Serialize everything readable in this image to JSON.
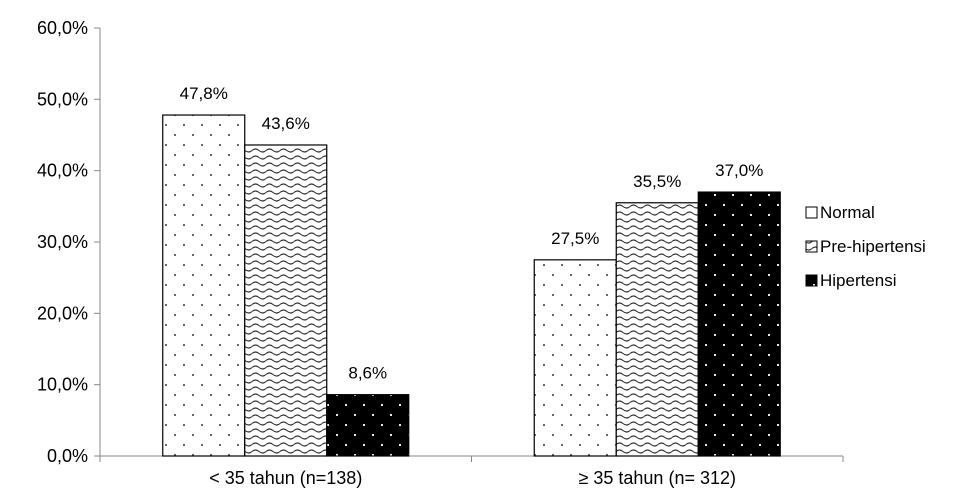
{
  "chart_data": {
    "type": "bar",
    "categories": [
      "< 35 tahun (n=138)",
      "≥ 35 tahun (n= 312)"
    ],
    "series": [
      {
        "name": "Normal",
        "values": [
          47.8,
          27.5
        ],
        "labels": [
          "47,8%",
          "27,5%"
        ],
        "pattern": "dots-sparse"
      },
      {
        "name": "Pre-hipertensi",
        "values": [
          43.6,
          35.5
        ],
        "labels": [
          "43,6%",
          "35,5%"
        ],
        "pattern": "waves"
      },
      {
        "name": "Hipertensi",
        "values": [
          8.6,
          37.0
        ],
        "labels": [
          "8,6%",
          "37,0%"
        ],
        "pattern": "dots-on-black"
      }
    ],
    "y_ticks": [
      "0,0%",
      "10,0%",
      "20,0%",
      "30,0%",
      "40,0%",
      "50,0%",
      "60,0%"
    ],
    "ylim": [
      0,
      60
    ],
    "grid": false,
    "legend_position": "right",
    "title": "",
    "xlabel": "",
    "ylabel": ""
  }
}
